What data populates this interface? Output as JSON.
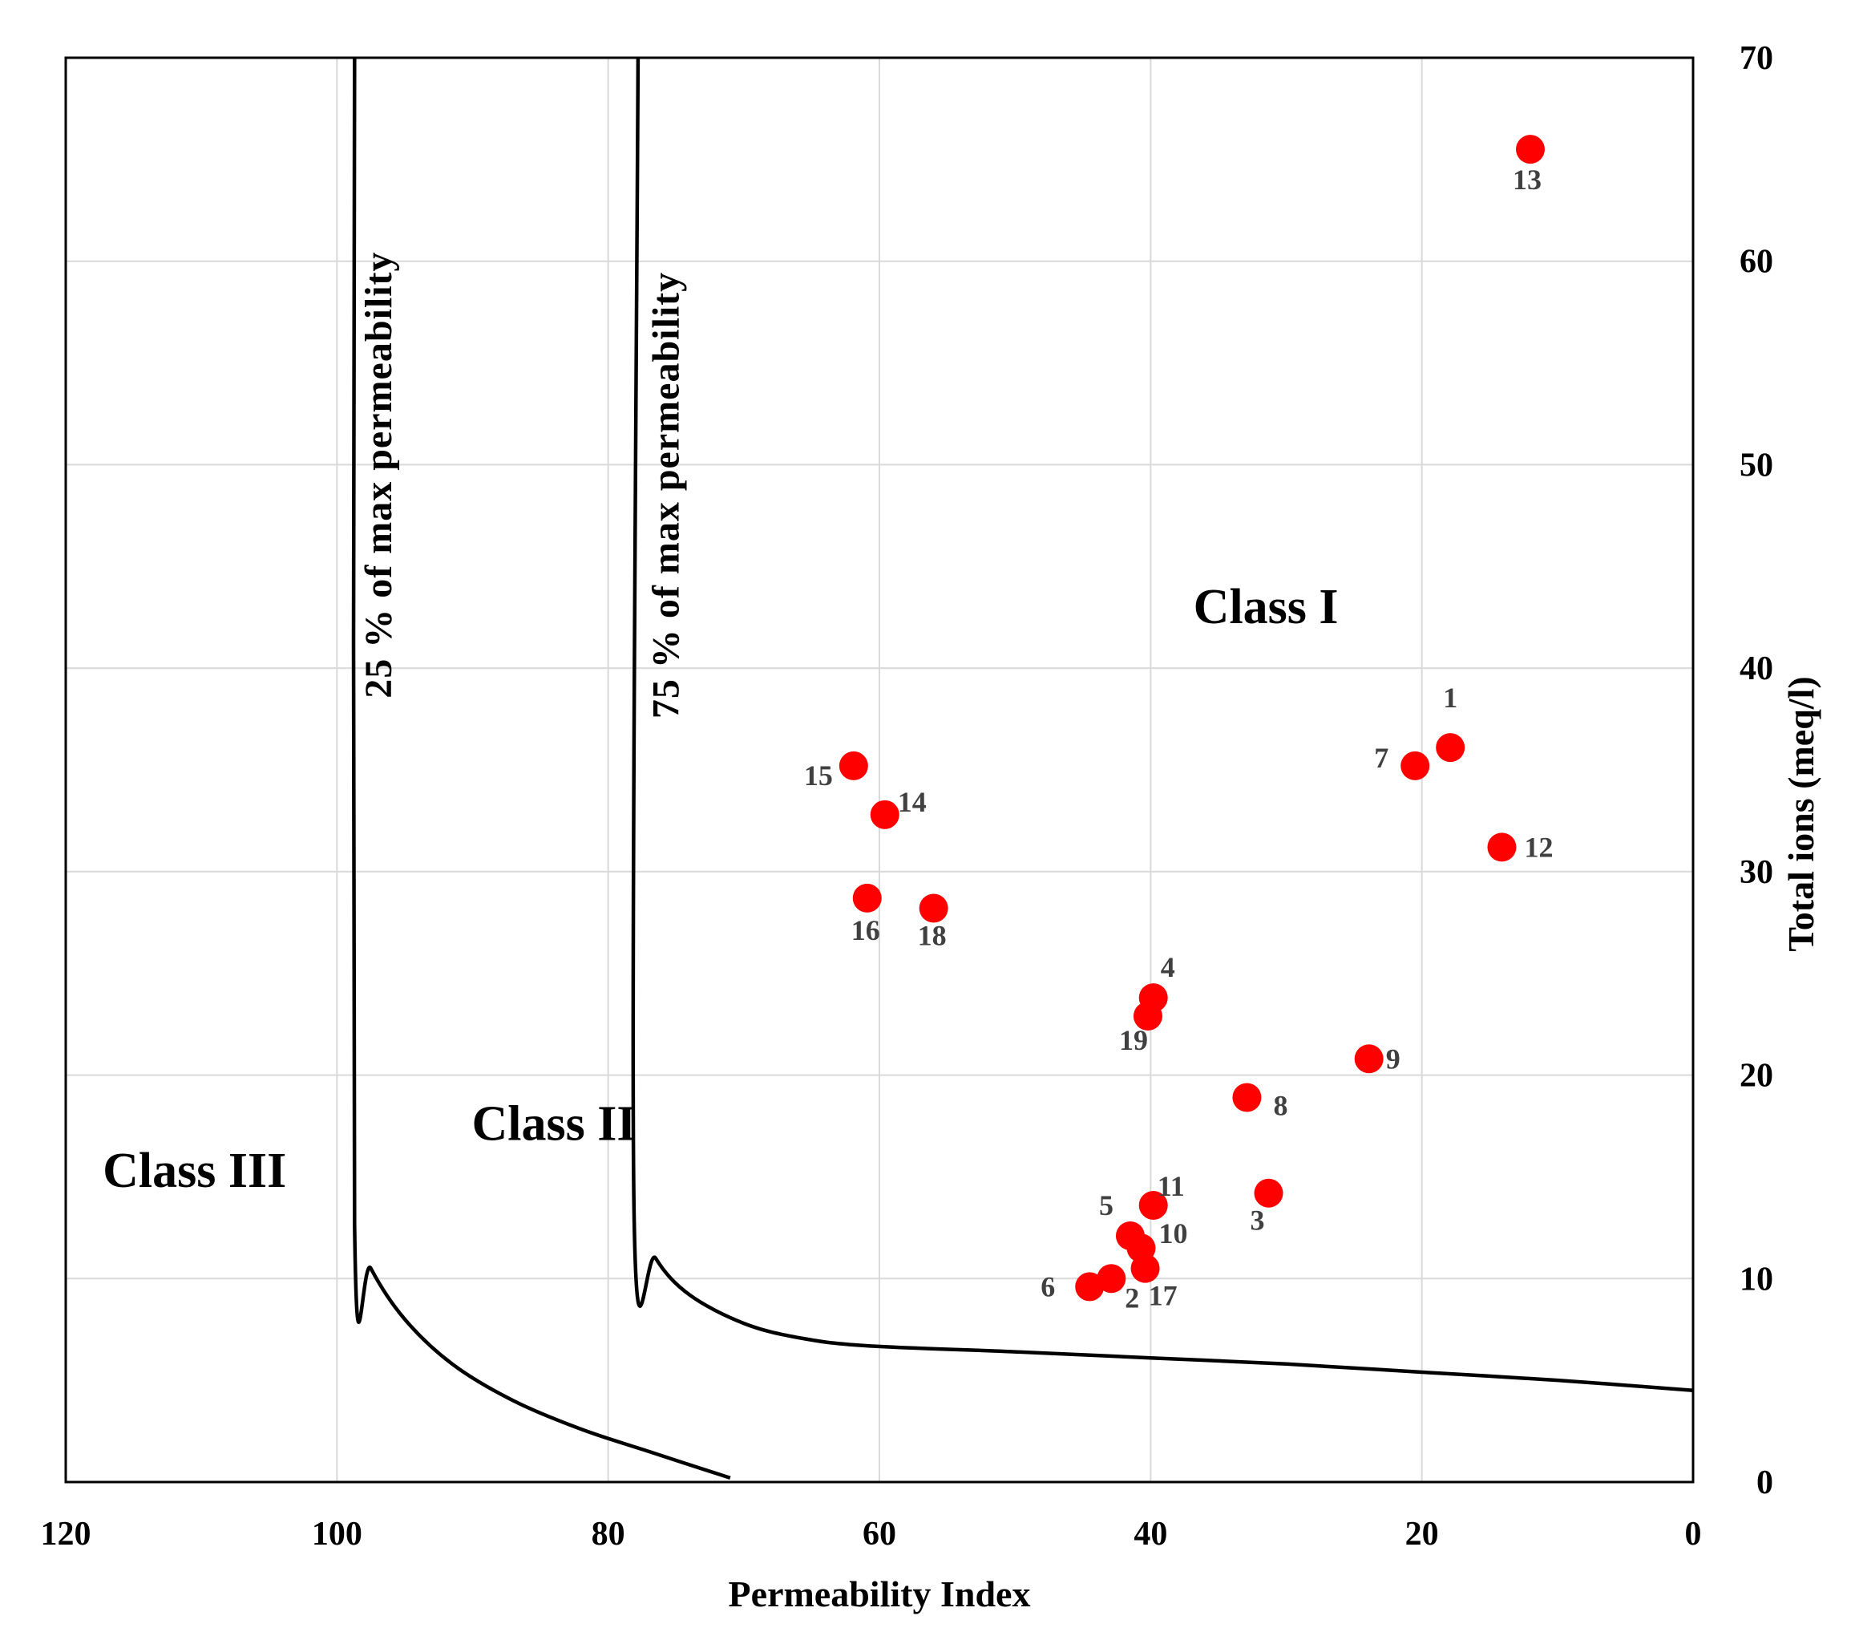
{
  "chart_data": {
    "type": "scatter",
    "title": "",
    "xlabel": "Permeability Index",
    "ylabel": "Total ions (meq/l)",
    "xlim": [
      120,
      0
    ],
    "x_reversed": true,
    "ylim": [
      0,
      70
    ],
    "x_ticks": [
      120,
      100,
      80,
      60,
      40,
      20,
      0
    ],
    "y_ticks": [
      0,
      10,
      20,
      30,
      40,
      50,
      60,
      70
    ],
    "grid": true,
    "point_color": "#ff0000",
    "points": [
      {
        "label": "1",
        "x": 17.9,
        "y": 36.1
      },
      {
        "label": "2",
        "x": 42.9,
        "y": 10.0
      },
      {
        "label": "3",
        "x": 31.3,
        "y": 14.2
      },
      {
        "label": "4",
        "x": 39.8,
        "y": 23.8
      },
      {
        "label": "5",
        "x": 41.5,
        "y": 12.1
      },
      {
        "label": "6",
        "x": 44.5,
        "y": 9.6
      },
      {
        "label": "7",
        "x": 20.5,
        "y": 35.2
      },
      {
        "label": "8",
        "x": 32.9,
        "y": 18.9
      },
      {
        "label": "9",
        "x": 23.9,
        "y": 20.8
      },
      {
        "label": "10",
        "x": 40.7,
        "y": 11.5
      },
      {
        "label": "11",
        "x": 39.8,
        "y": 13.6
      },
      {
        "label": "12",
        "x": 14.1,
        "y": 31.2
      },
      {
        "label": "13",
        "x": 12.0,
        "y": 65.5
      },
      {
        "label": "14",
        "x": 59.6,
        "y": 32.8
      },
      {
        "label": "15",
        "x": 61.9,
        "y": 35.2
      },
      {
        "label": "16",
        "x": 60.9,
        "y": 28.7
      },
      {
        "label": "17",
        "x": 40.4,
        "y": 10.5
      },
      {
        "label": "18",
        "x": 56.0,
        "y": 28.2
      },
      {
        "label": "19",
        "x": 40.2,
        "y": 22.9
      }
    ],
    "boundary_curves": [
      {
        "name": "25 % of max permeability",
        "points": [
          [
            98.7,
            70
          ],
          [
            98.7,
            12.7
          ],
          [
            97.5,
            10.5
          ],
          [
            95,
            8.0
          ],
          [
            91.5,
            5.8
          ],
          [
            87,
            4.0
          ],
          [
            82,
            2.6
          ],
          [
            77,
            1.5
          ],
          [
            71,
            0.2
          ]
        ]
      },
      {
        "name": "75 % of max permeability",
        "points": [
          [
            77.8,
            70
          ],
          [
            78.1,
            13.6
          ],
          [
            76.5,
            11.0
          ],
          [
            74,
            9.2
          ],
          [
            70,
            7.8
          ],
          [
            66,
            7.1
          ],
          [
            61,
            6.7
          ],
          [
            50,
            6.4
          ],
          [
            40,
            6.1
          ],
          [
            30,
            5.8
          ],
          [
            20,
            5.4
          ],
          [
            10,
            5.0
          ],
          [
            0,
            4.5
          ]
        ]
      }
    ],
    "regions": [
      {
        "name": "Class I",
        "x": 31.5,
        "y": 43.0
      },
      {
        "name": "Class II",
        "x": 84.0,
        "y": 17.6
      },
      {
        "name": "Class III",
        "x": 110.5,
        "y": 15.3
      }
    ],
    "curve_labels": [
      {
        "text": "25 % of max permeability",
        "x": 96.0,
        "y": 49.5
      },
      {
        "text": "75 % of max permeability",
        "x": 74.8,
        "y": 48.5
      }
    ]
  }
}
